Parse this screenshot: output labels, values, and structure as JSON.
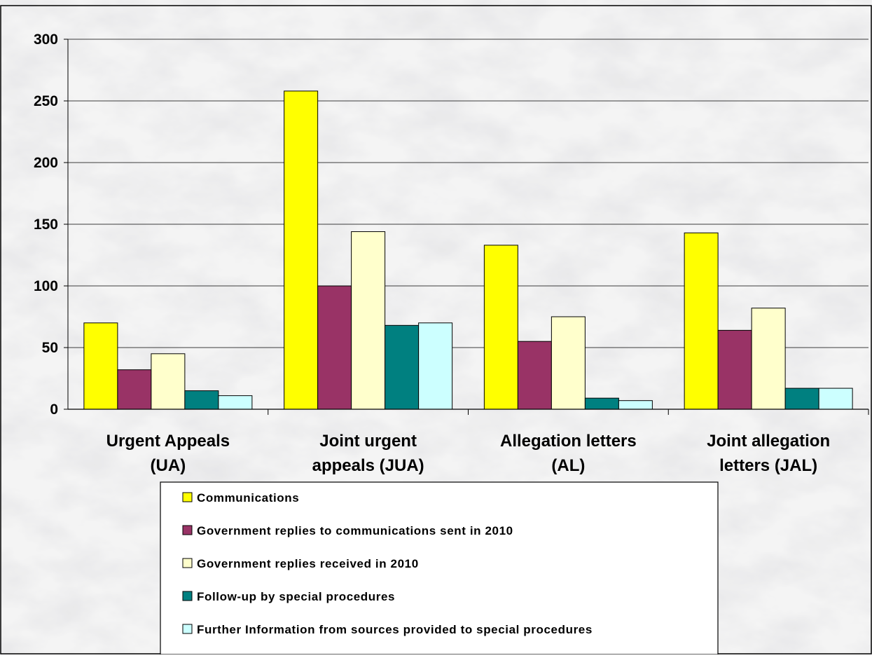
{
  "chart_data": {
    "type": "bar",
    "title": "",
    "xlabel": "",
    "ylabel": "",
    "ylim": [
      0,
      300
    ],
    "yticks": [
      0,
      50,
      100,
      150,
      200,
      250,
      300
    ],
    "grid": true,
    "legend_position": "bottom-center",
    "categories": [
      {
        "line1": "Urgent Appeals",
        "line2": "(UA)"
      },
      {
        "line1": "Joint urgent",
        "line2": "appeals (JUA)"
      },
      {
        "line1": "Allegation letters",
        "line2": "(AL)"
      },
      {
        "line1": "Joint allegation",
        "line2": "letters (JAL)"
      }
    ],
    "series": [
      {
        "name": "Communications",
        "color": "#FFFF00",
        "values": [
          70,
          258,
          133,
          143
        ]
      },
      {
        "name": "Government replies to communications sent in 2010",
        "color": "#993366",
        "values": [
          32,
          100,
          55,
          64
        ]
      },
      {
        "name": "Government replies received in 2010",
        "color": "#FFFFCC",
        "values": [
          45,
          144,
          75,
          82
        ]
      },
      {
        "name": "Follow-up by special procedures",
        "color": "#008080",
        "values": [
          15,
          68,
          9,
          17
        ]
      },
      {
        "name": "Further Information from sources provided to special procedures",
        "color": "#CCFFFF",
        "values": [
          11,
          70,
          7,
          17
        ]
      }
    ]
  }
}
